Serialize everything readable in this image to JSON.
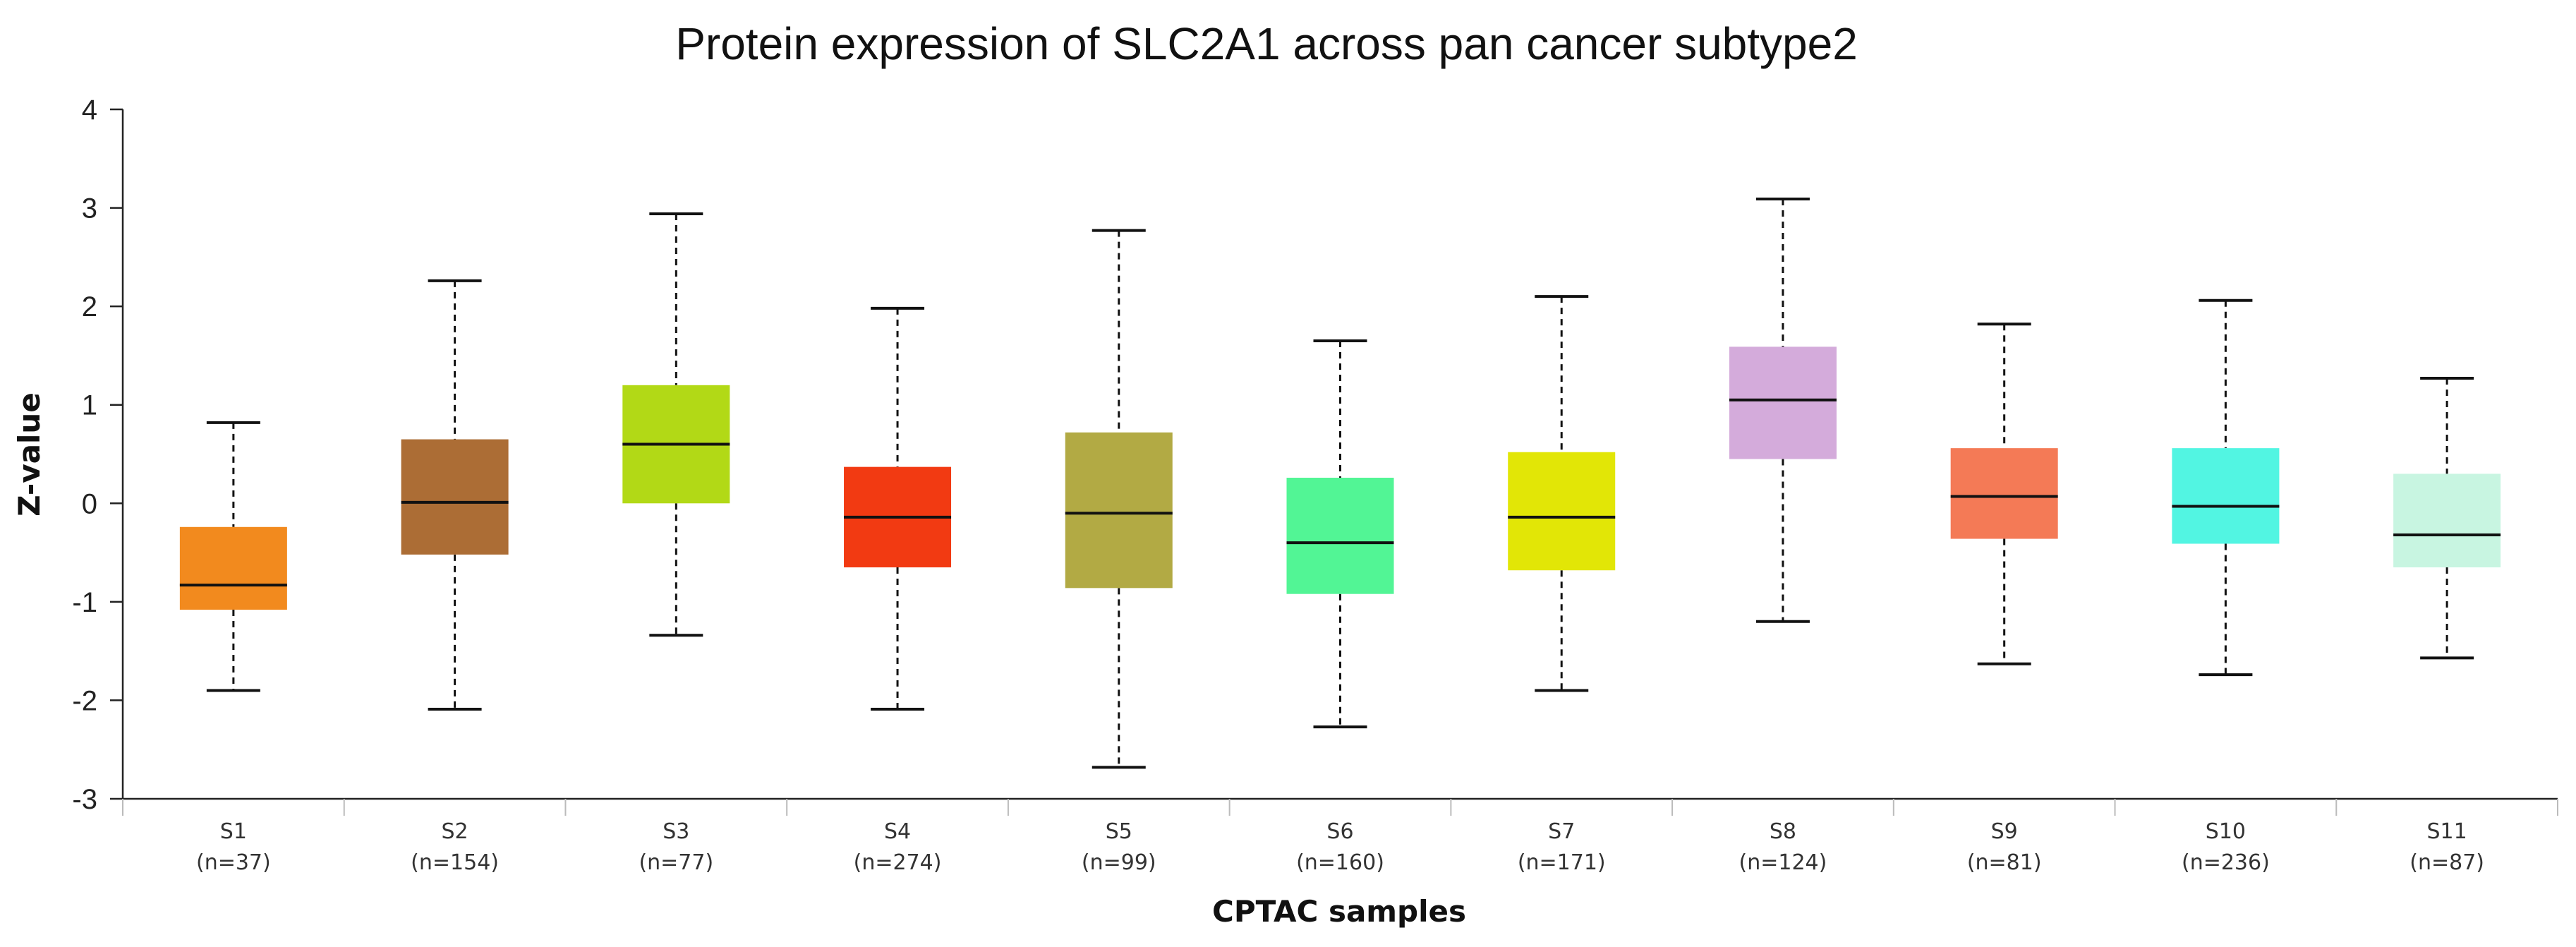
{
  "chart_data": {
    "type": "box",
    "title": "Protein expression of SLC2A1 across pan cancer subtype2",
    "xlabel": "CPTAC samples",
    "ylabel": "Z-value",
    "ylim": [
      -3,
      4
    ],
    "yticks": [
      4,
      3,
      2,
      1,
      0,
      -1,
      -2,
      -3
    ],
    "ytick_labels": [
      "4",
      "3",
      "2",
      "1",
      "0",
      "-1",
      "-2",
      "-3"
    ],
    "categories": [
      "S1",
      "S2",
      "S3",
      "S4",
      "S5",
      "S6",
      "S7",
      "S8",
      "S9",
      "S10",
      "S11"
    ],
    "n_labels": [
      "(n=37)",
      "(n=154)",
      "(n=77)",
      "(n=274)",
      "(n=99)",
      "(n=160)",
      "(n=171)",
      "(n=124)",
      "(n=81)",
      "(n=236)",
      "(n=87)"
    ],
    "boxes": [
      {
        "min": -1.9,
        "q1": -1.08,
        "median": -0.83,
        "q3": -0.24,
        "max": 0.82,
        "color": "#f28a1e"
      },
      {
        "min": -2.09,
        "q1": -0.52,
        "median": 0.01,
        "q3": 0.65,
        "max": 2.26,
        "color": "#ac6d35"
      },
      {
        "min": -1.34,
        "q1": 0.0,
        "median": 0.6,
        "q3": 1.2,
        "max": 2.94,
        "color": "#b2d916"
      },
      {
        "min": -2.09,
        "q1": -0.65,
        "median": -0.14,
        "q3": 0.37,
        "max": 1.98,
        "color": "#f23a12"
      },
      {
        "min": -2.68,
        "q1": -0.86,
        "median": -0.1,
        "q3": 0.72,
        "max": 2.77,
        "color": "#b2aa44"
      },
      {
        "min": -2.27,
        "q1": -0.92,
        "median": -0.4,
        "q3": 0.26,
        "max": 1.65,
        "color": "#52f595"
      },
      {
        "min": -1.9,
        "q1": -0.68,
        "median": -0.14,
        "q3": 0.52,
        "max": 2.1,
        "color": "#e2e606"
      },
      {
        "min": -1.2,
        "q1": 0.45,
        "median": 1.05,
        "q3": 1.59,
        "max": 3.09,
        "color": "#d4abdb"
      },
      {
        "min": -1.63,
        "q1": -0.36,
        "median": 0.07,
        "q3": 0.56,
        "max": 1.82,
        "color": "#f47a56"
      },
      {
        "min": -1.74,
        "q1": -0.41,
        "median": -0.03,
        "q3": 0.56,
        "max": 2.06,
        "color": "#52f5e2"
      },
      {
        "min": -1.57,
        "q1": -0.65,
        "median": -0.32,
        "q3": 0.3,
        "max": 1.27,
        "color": "#c8f5e1"
      }
    ]
  }
}
